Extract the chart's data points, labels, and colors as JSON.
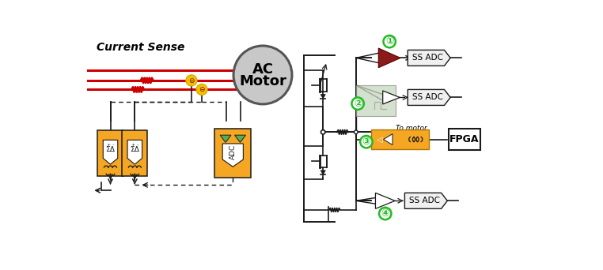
{
  "bg_color": "#ffffff",
  "left_label": "Current Sense",
  "motor_label1": "AC",
  "motor_label2": "Motor",
  "orange_color": "#F5A623",
  "red_dark": "#8B1A1A",
  "green_circle_color": "#22BB22",
  "green_triangle_color": "#5AAD5A",
  "gray_motor": "#C0C0C0",
  "light_green_box": "#C8D8C0",
  "line_color": "#1a1a1a",
  "red_wire": "#CC0000",
  "sensor_gold": "#D4A800",
  "sensor_inner": "#F5C000"
}
